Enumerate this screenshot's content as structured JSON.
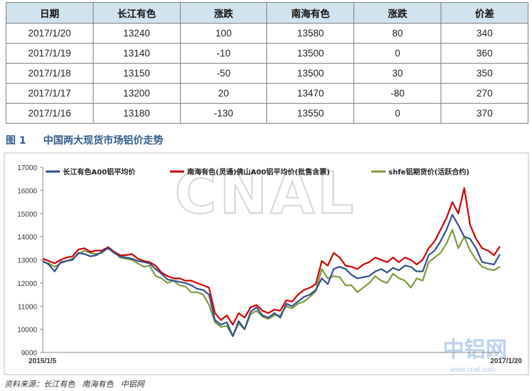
{
  "table": {
    "headers": [
      "日期",
      "长江有色",
      "涨跌",
      "南海有色",
      "涨跌",
      "价差"
    ],
    "rows": [
      [
        "2017/1/20",
        "13240",
        "100",
        "13580",
        "80",
        "340"
      ],
      [
        "2017/1/19",
        "13140",
        "-10",
        "13500",
        "0",
        "360"
      ],
      [
        "2017/1/18",
        "13150",
        "-50",
        "13500",
        "30",
        "350"
      ],
      [
        "2017/1/17",
        "13200",
        "20",
        "13470",
        "-80",
        "270"
      ],
      [
        "2017/1/16",
        "13180",
        "-130",
        "13550",
        "0",
        "370"
      ]
    ]
  },
  "figure": {
    "number": "图 1",
    "title": "中国两大现货市场铝价走势"
  },
  "footer": {
    "source_label": "资料来源：长江有色",
    "src2": "南海有色",
    "src3": "中铝网"
  },
  "watermark": {
    "text": "CNAL",
    "logo_text": "中铝网",
    "url": "www.cnal.com"
  },
  "chart_data": {
    "type": "line",
    "x_start": "2015/1/5",
    "x_end": "2017/1/20",
    "x_tick_labels": [
      "2015/1/5",
      "2017/1/20"
    ],
    "ylim": [
      9000,
      17000
    ],
    "yticks": [
      9000,
      10000,
      11000,
      12000,
      13000,
      14000,
      15000,
      16000,
      17000
    ],
    "legend_position": "top",
    "grid": false,
    "series": [
      {
        "name": "长江有色A00铝平均价",
        "color": "#2f4f8f",
        "values": [
          12950,
          12800,
          12500,
          12900,
          12950,
          13000,
          13300,
          13250,
          13150,
          13200,
          13350,
          13500,
          13300,
          13150,
          13100,
          13050,
          12950,
          12900,
          12850,
          12600,
          12400,
          12150,
          12100,
          12050,
          12000,
          11900,
          11750,
          11700,
          11500,
          10400,
          10200,
          10300,
          9700,
          10350,
          10000,
          10750,
          10950,
          10600,
          10500,
          10700,
          10500,
          11100,
          11000,
          11200,
          11400,
          11500,
          11700,
          12200,
          11950,
          12600,
          12700,
          12600,
          12350,
          12200,
          12250,
          12300,
          12500,
          12600,
          12450,
          12650,
          12550,
          12750,
          12700,
          12500,
          12500,
          13200,
          13400,
          13800,
          14300,
          14950,
          14500,
          14000,
          13900,
          13500,
          12900,
          12850,
          12800,
          13240
        ]
      },
      {
        "name": "南海有色(灵通)佛山A00铝平均价(批售含票)",
        "color": "#cc0000",
        "values": [
          13050,
          12950,
          12850,
          13000,
          13100,
          13150,
          13450,
          13500,
          13350,
          13400,
          13400,
          13550,
          13350,
          13200,
          13200,
          13250,
          13050,
          12950,
          12900,
          12750,
          12450,
          12300,
          12200,
          12200,
          12100,
          12100,
          12000,
          11900,
          11800,
          10700,
          10400,
          10600,
          10200,
          10700,
          10500,
          10950,
          11050,
          10800,
          10700,
          10850,
          10800,
          11250,
          11200,
          11500,
          11700,
          11800,
          11950,
          12950,
          12750,
          13300,
          13100,
          12750,
          12700,
          12600,
          12800,
          12900,
          13100,
          13000,
          12900,
          13100,
          12900,
          13100,
          13000,
          12800,
          13000,
          13500,
          13800,
          14300,
          14800,
          15500,
          15000,
          16100,
          14500,
          13900,
          13500,
          13400,
          13200,
          13580
        ]
      },
      {
        "name": "shfe铝期货价(活跃合约)",
        "color": "#7f9a3c",
        "values": [
          12900,
          12850,
          12700,
          12850,
          12950,
          13050,
          13250,
          13400,
          13300,
          13250,
          13300,
          13550,
          13350,
          13100,
          13050,
          13000,
          12850,
          12700,
          12750,
          12300,
          12200,
          12000,
          12100,
          11900,
          11850,
          11600,
          11600,
          11500,
          11050,
          10300,
          10100,
          10150,
          9700,
          10250,
          10000,
          10650,
          10800,
          10550,
          10450,
          10600,
          10600,
          11000,
          10900,
          11100,
          11200,
          11400,
          11650,
          12600,
          12200,
          12300,
          12250,
          11900,
          11900,
          11600,
          11800,
          12000,
          12300,
          12100,
          12000,
          12400,
          12200,
          12100,
          11800,
          12200,
          12100,
          12900,
          13100,
          13300,
          13700,
          14300,
          13500,
          14000,
          13400,
          13000,
          12700,
          12600,
          12550,
          12700
        ]
      }
    ]
  }
}
